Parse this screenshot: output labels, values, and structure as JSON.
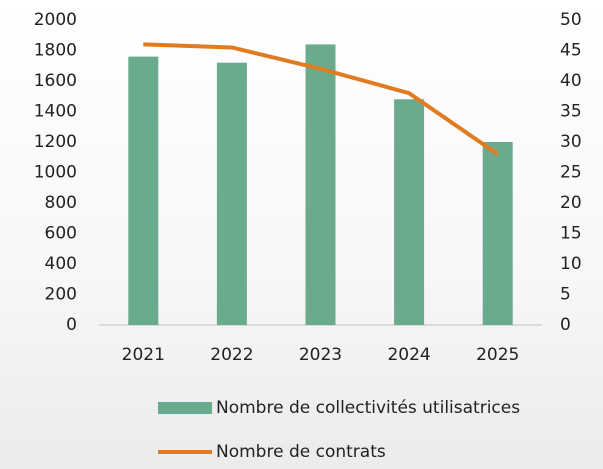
{
  "chart_data": {
    "type": "bar",
    "categories": [
      "2021",
      "2022",
      "2023",
      "2024",
      "2025"
    ],
    "series": [
      {
        "name": "Nombre de collectivités utilisatrices",
        "color": "#6aab8e",
        "values": [
          1760,
          1720,
          1840,
          1480,
          1200
        ]
      },
      {
        "name": "Nombre de contrats",
        "color": "#e07b1f",
        "type": "line",
        "axis": "y2",
        "values": [
          46,
          45.5,
          42,
          38,
          28
        ]
      }
    ],
    "ylim": [
      0,
      2000
    ],
    "yticks": [
      0,
      200,
      400,
      600,
      800,
      1000,
      1200,
      1400,
      1600,
      1800,
      2000
    ],
    "y2lim": [
      0,
      50
    ],
    "y2ticks": [
      0,
      5,
      10,
      15,
      20,
      25,
      30,
      35,
      40,
      45,
      50
    ],
    "grid": false,
    "legend": "bottom"
  }
}
